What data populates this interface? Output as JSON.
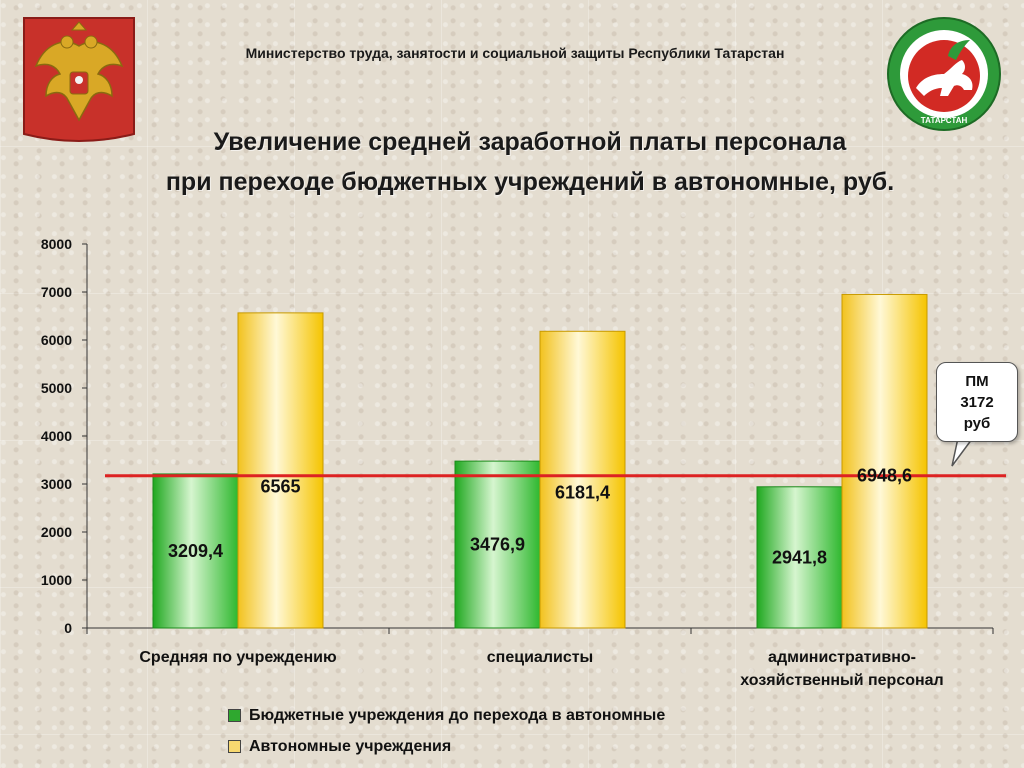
{
  "header": {
    "ministry": "Министерство  труда,  занятости и социальной защиты Республики Татарстан",
    "title_line1": "Увеличение средней заработной платы персонала",
    "title_line2": "при переходе бюджетных учреждений в автономные, руб."
  },
  "emblems": {
    "left": "russia-coat-of-arms-icon",
    "right": "tatarstan-coat-of-arms-icon",
    "right_text": "ТАТАРСТАН"
  },
  "pm_note": {
    "line1": "ПМ",
    "line2": "3172",
    "line3": "руб"
  },
  "colors": {
    "series_budget": "#33bb33",
    "series_auto": "#f0c020",
    "reference_line": "#dd2222"
  },
  "chart_data": {
    "type": "bar",
    "categories": [
      "Средняя по учреждению",
      "специалисты",
      "административно-хозяйственный персонал"
    ],
    "series": [
      {
        "name": "Бюджетные учреждения до перехода в автономные",
        "values": [
          3209.4,
          3476.9,
          2941.8
        ],
        "labels": [
          "3209,4",
          "3476,9",
          "2941,8"
        ]
      },
      {
        "name": "Автономные учреждения",
        "values": [
          6565,
          6181.4,
          6948.6
        ],
        "labels": [
          "6565",
          "6181,4",
          "6948,6"
        ]
      }
    ],
    "ylim": [
      0,
      8000
    ],
    "yticks": [
      "0",
      "1000",
      "2000",
      "3000",
      "4000",
      "5000",
      "6000",
      "7000",
      "8000"
    ],
    "reference_line": {
      "value": 3172
    },
    "grid": false,
    "legend": "bottom"
  }
}
